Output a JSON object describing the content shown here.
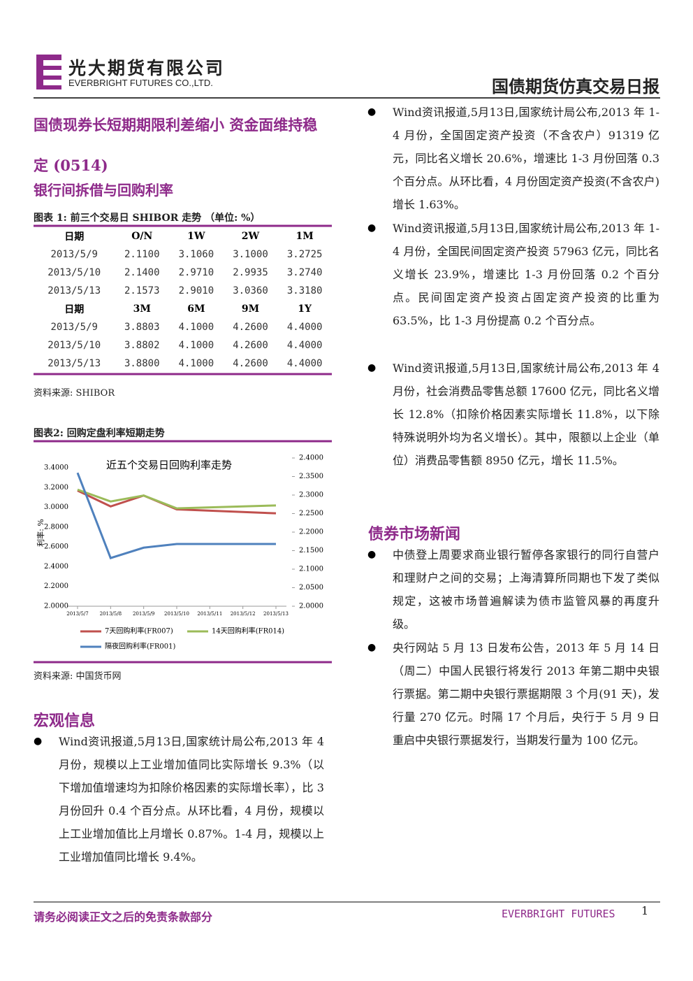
{
  "header": {
    "company_cn": "光大期货有限公司",
    "company_en": "EVERBRIGHT FUTURES CO.,LTD.",
    "report_title": "国债期货仿真交易日报"
  },
  "headline": "国债现券长短期期限利差缩小 资金面维持稳定 (0514)",
  "section_title": "银行间拆借与回购利率",
  "table_caption": "图表 1: 前三个交易日 SHIBOR 走势 （单位: %）",
  "table": {
    "blocks": [
      {
        "header": [
          "日期",
          "O/N",
          "1W",
          "2W",
          "1M"
        ],
        "rows": [
          [
            "2013/5/9",
            "2.1100",
            "3.1060",
            "3.1000",
            "3.2725"
          ],
          [
            "2013/5/10",
            "2.1400",
            "2.9710",
            "2.9935",
            "3.2740"
          ],
          [
            "2013/5/13",
            "2.1573",
            "2.9010",
            "3.0360",
            "3.3180"
          ]
        ]
      },
      {
        "header": [
          "日期",
          "3M",
          "6M",
          "9M",
          "1Y"
        ],
        "rows": [
          [
            "2013/5/9",
            "3.8803",
            "4.1000",
            "4.2600",
            "4.4000"
          ],
          [
            "2013/5/10",
            "3.8802",
            "4.1000",
            "4.2600",
            "4.4000"
          ],
          [
            "2013/5/13",
            "3.8800",
            "4.1000",
            "4.2600",
            "4.4000"
          ]
        ]
      }
    ]
  },
  "table_source": "资料来源: SHIBOR",
  "chart_caption": "图表2: 回购定盘利率短期走势",
  "chart_data": {
    "type": "line",
    "title": "近五个交易日回购利率走势",
    "y_label": "利率: %",
    "xlim": [
      "2013-05-07",
      "2013-05-13"
    ],
    "xticks": [
      {
        "value": "2013-05-07",
        "label": "2013/5/7"
      },
      {
        "value": "2013-05-08",
        "label": "2013/5/8"
      },
      {
        "value": "2013-05-09",
        "label": "2013/5/9"
      },
      {
        "value": "2013-05-10",
        "label": "2013/5/10"
      },
      {
        "value": "2013-05-11",
        "label": "2013/5/11"
      },
      {
        "value": "2013-05-12",
        "label": "2013/5/12"
      },
      {
        "value": "2013-05-13",
        "label": "2013/5/13"
      }
    ],
    "ylim": [
      2.0,
      3.5
    ],
    "yticks": [
      {
        "value": 2.0,
        "label": "2.0000"
      },
      {
        "value": 2.2,
        "label": "2.2000"
      },
      {
        "value": 2.4,
        "label": "2.4000"
      },
      {
        "value": 2.6,
        "label": "2.6000"
      },
      {
        "value": 2.8,
        "label": "2.8000"
      },
      {
        "value": 3.0,
        "label": "3.0000"
      },
      {
        "value": 3.2,
        "label": "3.2000"
      },
      {
        "value": 3.4,
        "label": "3.4000"
      }
    ],
    "y2lim": [
      2.0,
      2.4
    ],
    "y2ticks": [
      {
        "value": 2.0,
        "label": "2.0000"
      },
      {
        "value": 2.05,
        "label": "2.0500"
      },
      {
        "value": 2.1,
        "label": "2.1000"
      },
      {
        "value": 2.15,
        "label": "2.1500"
      },
      {
        "value": 2.2,
        "label": "2.2000"
      },
      {
        "value": 2.25,
        "label": "2.2500"
      },
      {
        "value": 2.3,
        "label": "2.3000"
      },
      {
        "value": 2.35,
        "label": "2.3500"
      },
      {
        "value": 2.4,
        "label": "2.4000"
      }
    ],
    "series": [
      {
        "name": "7天回购利率(FR007)",
        "color": "#c0504d",
        "x": [
          "2013-05-07",
          "2013-05-08",
          "2013-05-09",
          "2013-05-10",
          "2013-05-13"
        ],
        "values": [
          3.17,
          3.01,
          3.12,
          2.98,
          2.94
        ]
      },
      {
        "name": "14天回购利率(FR014)",
        "color": "#9bbb59",
        "x": [
          "2013-05-07",
          "2013-05-08",
          "2013-05-09",
          "2013-05-10",
          "2013-05-13"
        ],
        "values": [
          3.18,
          3.06,
          3.12,
          2.99,
          3.02
        ]
      },
      {
        "name": "隔夜回购利率(FR001)",
        "color": "#4f81bd",
        "axis": "y2",
        "x": [
          "2013-05-07",
          "2013-05-08",
          "2013-05-09",
          "2013-05-10",
          "2013-05-13"
        ],
        "values": [
          2.36,
          2.13,
          2.158,
          2.168,
          2.168
        ]
      }
    ]
  },
  "chart_source": "资料来源: 中国货币网",
  "macro": {
    "title": "宏观信息",
    "bullets": [
      "Wind资讯报道,5月13日,国家统计局公布,2013 年 4 月份，规模以上工业增加值同比实际增长 9.3%（以下增加值增速均为扣除价格因素的实际增长率），比 3 月份回升 0.4 个百分点。从环比看，4 月份，规模以上工业增加值比上月增长 0.87%。1-4 月，规模以上工业增加值同比增长 9.4%。"
    ]
  },
  "right_bullets": [
    "Wind资讯报道,5月13日,国家统计局公布,2013 年 1-4 月份，全国固定资产投资（不含农户）91319 亿元，同比名义增长 20.6%，增速比 1-3 月份回落 0.3 个百分点。从环比看，4 月份固定资产投资(不含农户)增长 1.63%。",
    "Wind资讯报道,5月13日,国家统计局公布,2013 年 1-4 月份，全国民间固定资产投资 57963 亿元，同比名义增长 23.9%，增速比 1-3 月份回落 0.2 个百分点。民间固定资产投资占固定资产投资的比重为 63.5%，比 1-3 月份提高 0.2 个百分点。",
    "Wind资讯报道,5月13日,国家统计局公布,2013 年 4 月份，社会消费品零售总额 17600 亿元，同比名义增长 12.8%（扣除价格因素实际增长 11.8%，以下除特殊说明外均为名义增长）。其中，限额以上企业（单位）消费品零售额 8950 亿元，增长 11.5%。"
  ],
  "bond_news": {
    "title": "债券市场新闻",
    "bullets": [
      "中债登上周要求商业银行暂停各家银行的同行自营户和理财户之间的交易；上海清算所同期也下发了类似规定，这被市场普遍解读为债市监管风暴的再度升级。",
      "央行网站 5 月 13 日发布公告，2013 年 5 月 14 日（周二）中国人民银行将发行 2013 年第二期中央银行票据。第二期中央银行票据期限 3 个月(91 天)，发行量 270 亿元。时隔 17 个月后，央行于 5 月 9 日重启中央银行票据发行，当期发行量为 100 亿元。"
    ]
  },
  "footer": {
    "disclaimer": "请务必阅读正文之后的免责条款部分",
    "brand": "EVERBRIGHT FUTURES",
    "page": "1"
  }
}
